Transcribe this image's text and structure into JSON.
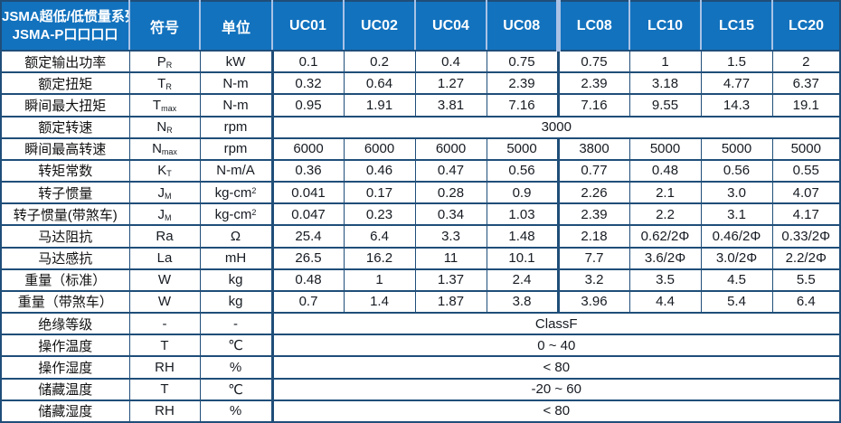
{
  "colors": {
    "header_bg": "#1272BE",
    "header_text": "#FFFFFF",
    "header_divider": "#A9C2E6",
    "grid_line": "#1F4E79",
    "body_text": "#161B22"
  },
  "table": {
    "title_line1": "JSMA超低/低惯量系列",
    "title_line2": "JSMA-P口口口口",
    "header": {
      "symbol": "符号",
      "unit": "单位",
      "models": [
        "UC01",
        "UC02",
        "UC04",
        "UC08",
        "LC08",
        "LC10",
        "LC15",
        "LC20"
      ]
    },
    "rows": [
      {
        "label": "额定输出功率",
        "symbol": "P",
        "sub": "R",
        "unit": "kW",
        "values": [
          "0.1",
          "0.2",
          "0.4",
          "0.75",
          "0.75",
          "1",
          "1.5",
          "2"
        ]
      },
      {
        "label": "额定扭矩",
        "symbol": "T",
        "sub": "R",
        "unit": "N-m",
        "values": [
          "0.32",
          "0.64",
          "1.27",
          "2.39",
          "2.39",
          "3.18",
          "4.77",
          "6.37"
        ]
      },
      {
        "label": "瞬间最大扭矩",
        "symbol": "T",
        "sub": "max",
        "unit": "N-m",
        "values": [
          "0.95",
          "1.91",
          "3.81",
          "7.16",
          "7.16",
          "9.55",
          "14.3",
          "19.1"
        ]
      },
      {
        "label": "额定转速",
        "symbol": "N",
        "sub": "R",
        "unit": "rpm",
        "merged": "3000"
      },
      {
        "label": "瞬间最高转速",
        "symbol": "N",
        "sub": "max",
        "unit": "rpm",
        "values": [
          "6000",
          "6000",
          "6000",
          "5000",
          "3800",
          "5000",
          "5000",
          "5000"
        ]
      },
      {
        "label": "转矩常数",
        "symbol": "K",
        "sub": "T",
        "unit": "N-m/A",
        "values": [
          "0.36",
          "0.46",
          "0.47",
          "0.56",
          "0.77",
          "0.48",
          "0.56",
          "0.55"
        ]
      },
      {
        "label": "转子惯量",
        "symbol": "J",
        "sub": "M",
        "unit": "kg-cm",
        "unit_sup": "2",
        "values": [
          "0.041",
          "0.17",
          "0.28",
          "0.9",
          "2.26",
          "2.1",
          "3.0",
          "4.07"
        ]
      },
      {
        "label": "转子惯量(带煞车)",
        "symbol": "J",
        "sub": "M",
        "unit": "kg-cm",
        "unit_sup": "2",
        "values": [
          "0.047",
          "0.23",
          "0.34",
          "1.03",
          "2.39",
          "2.2",
          "3.1",
          "4.17"
        ]
      },
      {
        "label": "马达阻抗",
        "symbol": "Ra",
        "unit": "Ω",
        "values": [
          "25.4",
          "6.4",
          "3.3",
          "1.48",
          "2.18",
          "0.62/2Φ",
          "0.46/2Φ",
          "0.33/2Φ"
        ]
      },
      {
        "label": "马达感抗",
        "symbol": "La",
        "unit": "mH",
        "values": [
          "26.5",
          "16.2",
          "11",
          "10.1",
          "7.7",
          "3.6/2Φ",
          "3.0/2Φ",
          "2.2/2Φ"
        ]
      },
      {
        "label": "重量（标准）",
        "symbol": "W",
        "unit": "kg",
        "values": [
          "0.48",
          "1",
          "1.37",
          "2.4",
          "3.2",
          "3.5",
          "4.5",
          "5.5"
        ]
      },
      {
        "label": "重量（带煞车）",
        "symbol": "W",
        "unit": "kg",
        "values": [
          "0.7",
          "1.4",
          "1.87",
          "3.8",
          "3.96",
          "4.4",
          "5.4",
          "6.4"
        ]
      },
      {
        "label": "绝缘等级",
        "symbol": "-",
        "unit": "-",
        "merged": "ClassF"
      },
      {
        "label": "操作温度",
        "symbol": "T",
        "unit": "℃",
        "merged": "0 ~ 40"
      },
      {
        "label": "操作湿度",
        "symbol": "RH",
        "unit": "%",
        "merged": "< 80"
      },
      {
        "label": "储藏温度",
        "symbol": "T",
        "unit": "℃",
        "merged": "-20 ~ 60"
      },
      {
        "label": "储藏湿度",
        "symbol": "RH",
        "unit": "%",
        "merged": "< 80"
      }
    ]
  }
}
